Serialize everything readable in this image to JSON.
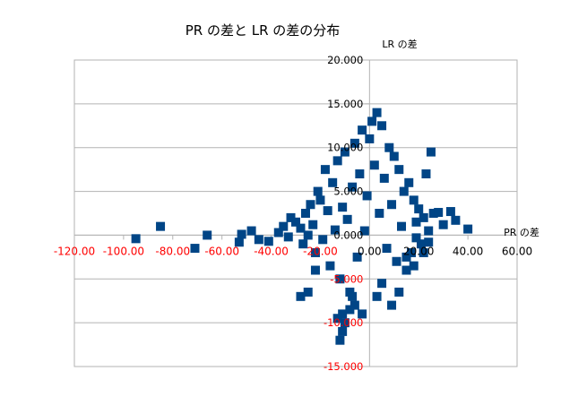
{
  "chart_data": {
    "type": "scatter",
    "title": "PR の差と LR の差の分布",
    "xlabel": "PR の差",
    "ylabel": "LR の差",
    "xlim": [
      -120,
      60
    ],
    "ylim": [
      -15,
      20
    ],
    "x_ticks": [
      {
        "value": -120,
        "label": "-120.00"
      },
      {
        "value": -100,
        "label": "-100.00"
      },
      {
        "value": -80,
        "label": "-80.00"
      },
      {
        "value": -60,
        "label": "-60.00"
      },
      {
        "value": -40,
        "label": "-40.00"
      },
      {
        "value": -20,
        "label": "-20.00"
      },
      {
        "value": 0,
        "label": "0.00"
      },
      {
        "value": 20,
        "label": "20.00"
      },
      {
        "value": 40,
        "label": "40.00"
      },
      {
        "value": 60,
        "label": "60.00"
      }
    ],
    "y_ticks": [
      {
        "value": 20,
        "label": "20.000"
      },
      {
        "value": 15,
        "label": "15.000"
      },
      {
        "value": 10,
        "label": "10.000"
      },
      {
        "value": 5,
        "label": "5.000"
      },
      {
        "value": 0,
        "label": "0.000"
      },
      {
        "value": -5,
        "label": "-5.000"
      },
      {
        "value": -10,
        "label": "-10.000"
      },
      {
        "value": -15,
        "label": "-15.000"
      }
    ],
    "negative_label_color": "#ff0000",
    "marker": "square",
    "marker_color": "#004586",
    "grid": "horizontal",
    "legend": "none",
    "series": [
      {
        "points": [
          [
            -95.0,
            -0.4
          ],
          [
            -85.0,
            1.0
          ],
          [
            -71.0,
            -1.5
          ],
          [
            -66.0,
            0.0
          ],
          [
            -53.0,
            -0.8
          ],
          [
            -52.0,
            0.1
          ],
          [
            -48.0,
            0.5
          ],
          [
            -45.0,
            -0.5
          ],
          [
            -41.0,
            -0.7
          ],
          [
            -37.0,
            0.3
          ],
          [
            -35.0,
            1.0
          ],
          [
            -33.0,
            -0.2
          ],
          [
            -32.0,
            2.0
          ],
          [
            -30.0,
            1.5
          ],
          [
            -28.0,
            0.8
          ],
          [
            -27.0,
            -1.0
          ],
          [
            -26.0,
            2.5
          ],
          [
            -25.0,
            0.0
          ],
          [
            -24.0,
            3.5
          ],
          [
            -23.0,
            1.2
          ],
          [
            -22.0,
            -2.0
          ],
          [
            -21.0,
            5.0
          ],
          [
            -20.0,
            4.0
          ],
          [
            -19.0,
            -0.5
          ],
          [
            -18.0,
            7.5
          ],
          [
            -17.0,
            2.8
          ],
          [
            -16.0,
            -3.5
          ],
          [
            -15.0,
            6.0
          ],
          [
            -14.0,
            0.6
          ],
          [
            -13.0,
            8.5
          ],
          [
            -12.0,
            -5.0
          ],
          [
            -11.0,
            3.2
          ],
          [
            -10.0,
            9.5
          ],
          [
            -9.0,
            1.8
          ],
          [
            -8.0,
            -6.5
          ],
          [
            -7.0,
            5.5
          ],
          [
            -6.0,
            10.5
          ],
          [
            -5.0,
            -2.5
          ],
          [
            -4.0,
            7.0
          ],
          [
            -3.0,
            12.0
          ],
          [
            -2.0,
            0.5
          ],
          [
            -1.0,
            4.5
          ],
          [
            0.0,
            11.0
          ],
          [
            1.0,
            13.0
          ],
          [
            2.0,
            8.0
          ],
          [
            3.0,
            14.0
          ],
          [
            4.0,
            2.5
          ],
          [
            5.0,
            12.5
          ],
          [
            6.0,
            6.5
          ],
          [
            7.0,
            -1.5
          ],
          [
            8.0,
            10.0
          ],
          [
            9.0,
            3.5
          ],
          [
            10.0,
            9.0
          ],
          [
            11.0,
            -3.0
          ],
          [
            12.0,
            7.5
          ],
          [
            13.0,
            1.0
          ],
          [
            14.0,
            5.0
          ],
          [
            15.0,
            -4.0
          ],
          [
            16.0,
            6.0
          ],
          [
            17.0,
            -2.0
          ],
          [
            18.0,
            4.0
          ],
          [
            19.0,
            1.5
          ],
          [
            20.0,
            3.0
          ],
          [
            21.0,
            -1.0
          ],
          [
            22.0,
            2.0
          ],
          [
            23.0,
            7.0
          ],
          [
            24.0,
            0.5
          ],
          [
            25.0,
            9.5
          ],
          [
            26.0,
            2.5
          ],
          [
            28.0,
            2.6
          ],
          [
            30.0,
            1.2
          ],
          [
            33.0,
            2.7
          ],
          [
            35.0,
            1.7
          ],
          [
            40.0,
            0.7
          ],
          [
            -7.0,
            -7.0
          ],
          [
            -6.0,
            -8.0
          ],
          [
            -8.0,
            -8.5
          ],
          [
            -11.0,
            -9.0
          ],
          [
            -10.0,
            -10.0
          ],
          [
            -13.0,
            -9.5
          ],
          [
            -11.0,
            -11.0
          ],
          [
            -12.0,
            -12.0
          ],
          [
            -28.0,
            -7.0
          ],
          [
            -25.0,
            -6.5
          ],
          [
            -22.0,
            -4.0
          ],
          [
            -3.0,
            -9.0
          ],
          [
            3.0,
            -7.0
          ],
          [
            5.0,
            -5.5
          ],
          [
            9.0,
            -8.0
          ],
          [
            12.0,
            -6.5
          ],
          [
            15.0,
            -2.5
          ],
          [
            19.0,
            -0.3
          ],
          [
            22.0,
            -2.0
          ],
          [
            24.0,
            -0.8
          ],
          [
            18.0,
            -3.5
          ]
        ]
      }
    ]
  }
}
